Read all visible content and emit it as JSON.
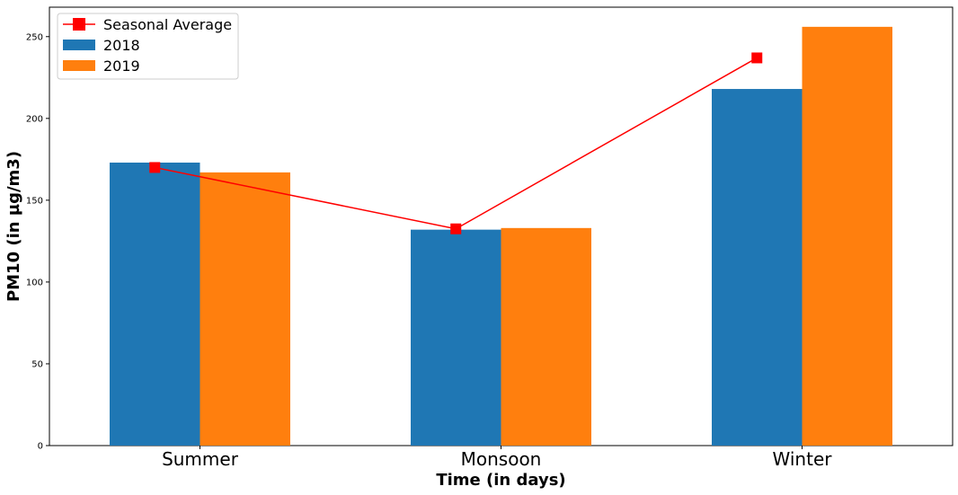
{
  "chart_data": {
    "type": "bar",
    "categories": [
      "Summer",
      "Monsoon",
      "Winter"
    ],
    "series": [
      {
        "name": "2018",
        "values": [
          173,
          132,
          218
        ],
        "color": "#1f77b4"
      },
      {
        "name": "2019",
        "values": [
          167,
          133,
          256
        ],
        "color": "#ff7f0e"
      }
    ],
    "line_series": {
      "name": "Seasonal Average",
      "values": [
        170,
        132.5,
        237
      ],
      "color": "#ff0000",
      "marker": "square"
    },
    "xlabel": "Time (in days)",
    "ylabel": "PM10 (in µg/m3)",
    "ylim": [
      0,
      268
    ],
    "yticks": [
      "0",
      "50",
      "100",
      "150",
      "200",
      "250"
    ],
    "legend_position": "top-left",
    "grid": false
  }
}
